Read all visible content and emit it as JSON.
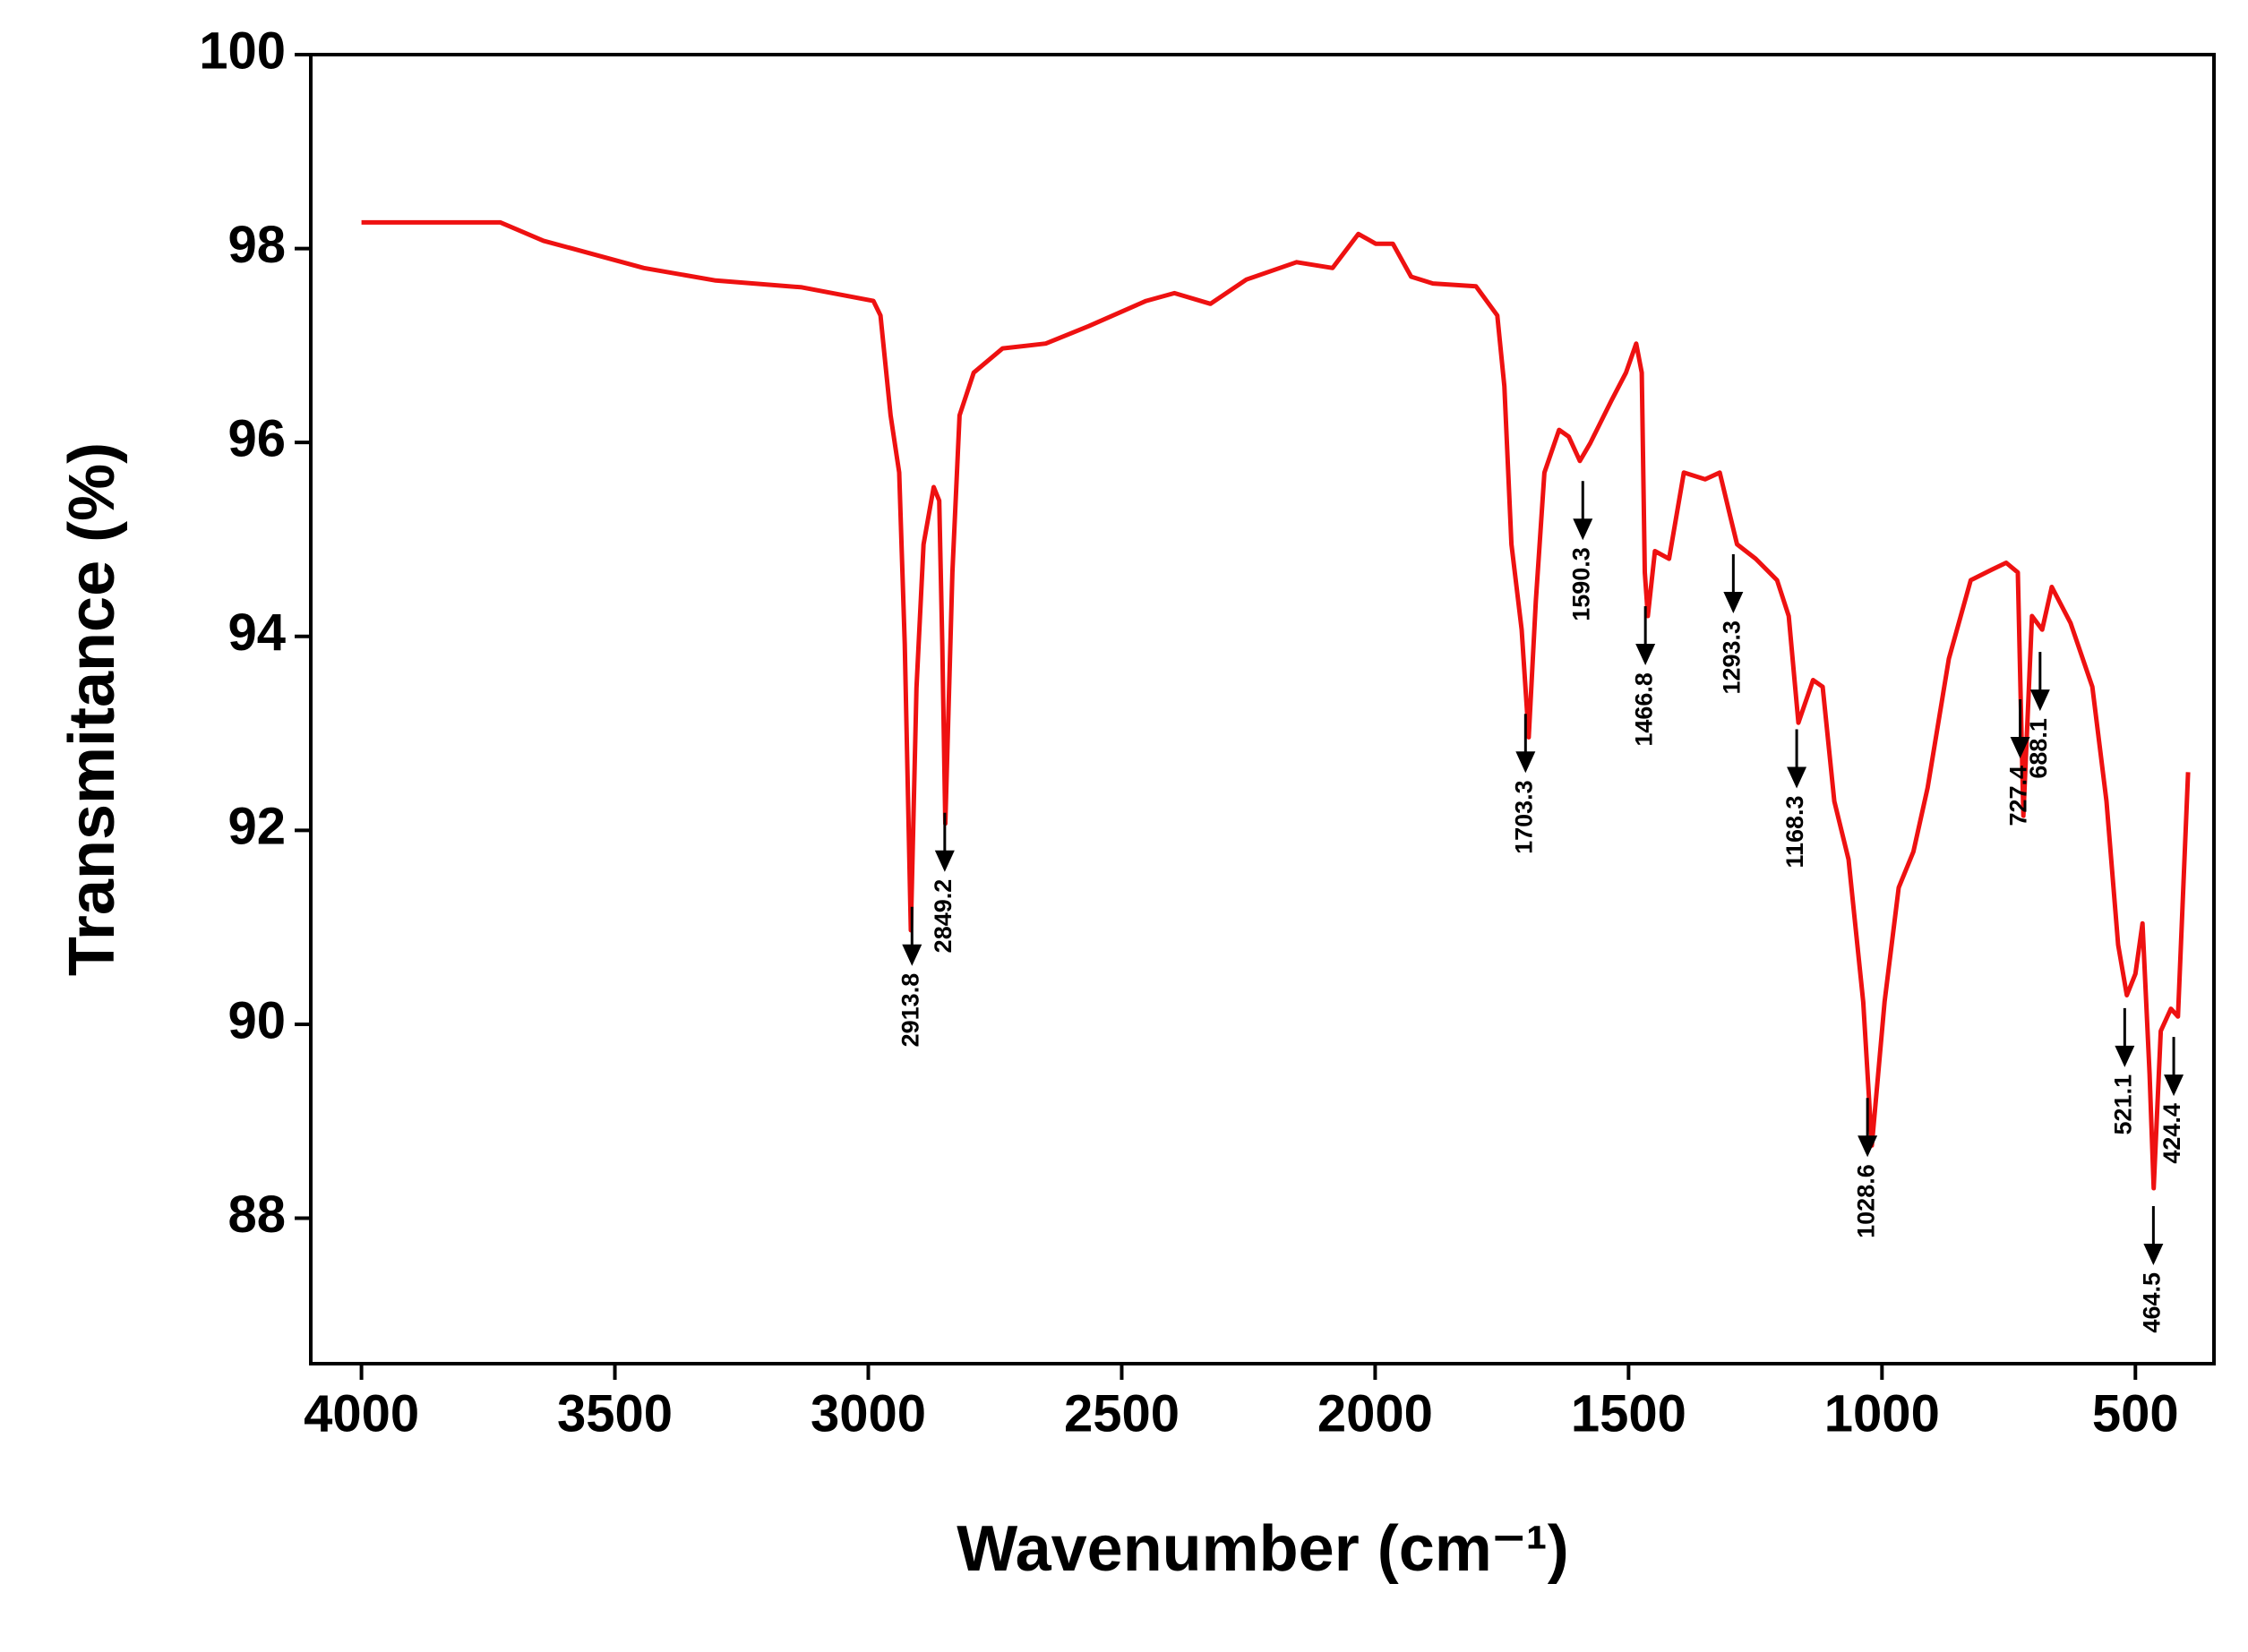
{
  "chart_data": {
    "type": "line",
    "x_label": "Wavenumber (cm⁻¹)",
    "y_label": "Transmitance (%)",
    "x": [
      4000,
      3726,
      3641,
      3584,
      3443,
      3301,
      3131,
      2990,
      2976,
      2956,
      2939,
      2928,
      2916,
      2905,
      2891,
      2871,
      2860,
      2854,
      2848,
      2834,
      2820,
      2792,
      2735,
      2650,
      2565,
      2452,
      2396,
      2325,
      2254,
      2155,
      2084,
      2033,
      1999,
      1965,
      1929,
      1886,
      1801,
      1759,
      1745,
      1731,
      1711,
      1697,
      1683,
      1666,
      1637,
      1618,
      1596,
      1576,
      1534,
      1505,
      1485,
      1474,
      1468,
      1462,
      1448,
      1420,
      1391,
      1349,
      1320,
      1300,
      1286,
      1249,
      1207,
      1184,
      1165,
      1136,
      1117,
      1094,
      1066,
      1037,
      1020,
      995,
      967,
      938,
      910,
      868,
      825,
      783,
      755,
      732,
      721,
      704,
      684,
      665,
      628,
      585,
      557,
      534,
      517,
      500,
      486,
      472,
      464,
      450,
      430,
      416,
      396
    ],
    "values": [
      98.27,
      98.27,
      98.08,
      98.0,
      97.8,
      97.67,
      97.6,
      97.46,
      97.31,
      96.28,
      95.69,
      93.92,
      90.97,
      93.47,
      94.95,
      95.54,
      95.4,
      93.92,
      92.07,
      94.66,
      96.28,
      96.72,
      96.97,
      97.02,
      97.2,
      97.46,
      97.54,
      97.43,
      97.68,
      97.86,
      97.8,
      98.15,
      98.05,
      98.05,
      97.71,
      97.64,
      97.61,
      97.31,
      96.58,
      94.95,
      94.07,
      92.96,
      94.36,
      95.69,
      96.13,
      96.06,
      95.81,
      95.99,
      96.43,
      96.72,
      97.02,
      96.72,
      94.66,
      94.21,
      94.88,
      94.8,
      95.69,
      95.62,
      95.69,
      95.25,
      94.95,
      94.8,
      94.58,
      94.21,
      93.11,
      93.55,
      93.48,
      92.3,
      91.7,
      90.23,
      88.75,
      90.23,
      91.41,
      91.78,
      92.44,
      93.77,
      94.58,
      94.69,
      94.76,
      94.66,
      92.15,
      94.21,
      94.07,
      94.51,
      94.14,
      93.48,
      92.3,
      90.82,
      90.3,
      90.52,
      91.04,
      89.49,
      88.31,
      89.93,
      90.16,
      90.08,
      92.6
    ],
    "color": "#ee1111",
    "peaks": [
      2913.8,
      2849.2,
      1703.3,
      1590.3,
      1466.8,
      1293.3,
      1168.3,
      1028.6,
      727.4,
      688.1,
      521.1,
      464.5,
      424.4
    ],
    "xlim": [
      4100,
      345
    ],
    "xticks": [
      4000,
      3500,
      3000,
      2500,
      2000,
      1500,
      1000,
      500
    ],
    "ylim": [
      86.5,
      100
    ],
    "yticks": [
      88,
      90,
      92,
      94,
      96,
      98,
      100
    ]
  }
}
